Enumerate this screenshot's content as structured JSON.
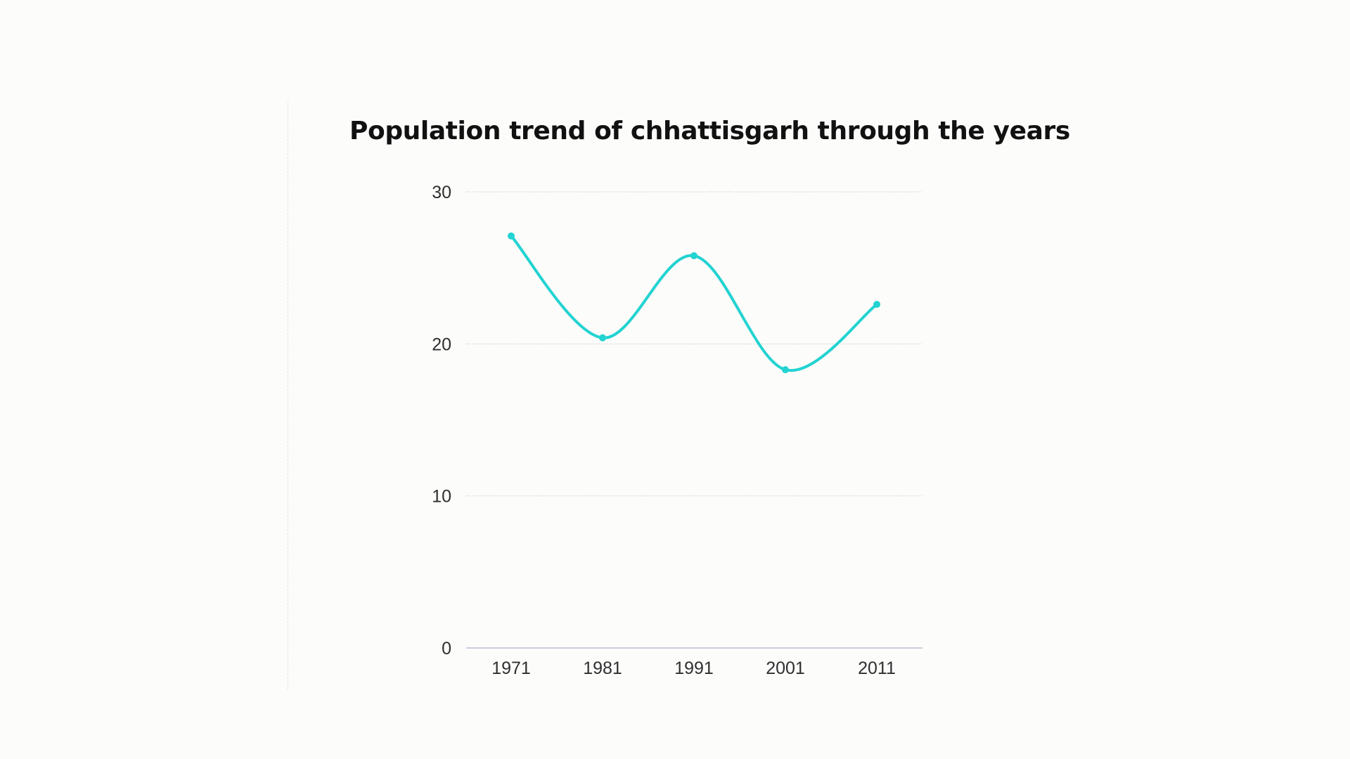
{
  "chart_data": {
    "type": "line",
    "title": "Population trend of chhattisgarh through the years",
    "xlabel": "",
    "ylabel": "",
    "categories": [
      "1971",
      "1981",
      "1991",
      "2001",
      "2011"
    ],
    "series": [
      {
        "values": [
          27.1,
          20.4,
          25.8,
          18.3,
          22.6
        ]
      }
    ],
    "ylim": [
      0,
      30
    ],
    "yticks": [
      "0",
      "10",
      "20",
      "30"
    ],
    "grid": true,
    "legend": "none",
    "smooth": true,
    "markers": true,
    "colors": {
      "line": "#22d3d1",
      "grid": "#cfcfcf",
      "axis": "#b8bdd6"
    }
  }
}
